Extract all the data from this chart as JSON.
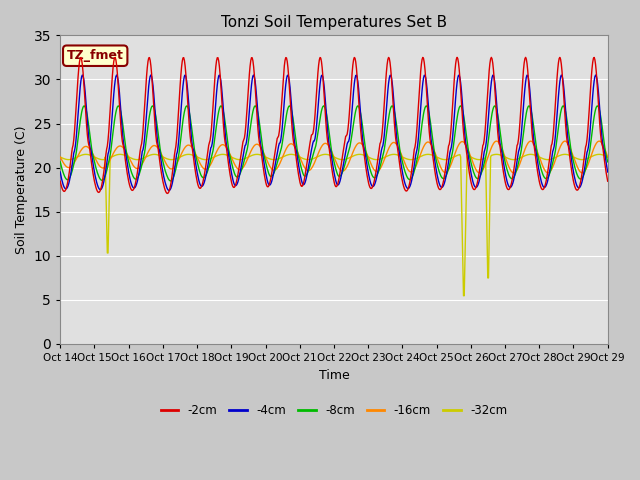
{
  "title": "Tonzi Soil Temperatures Set B",
  "xlabel": "Time",
  "ylabel": "Soil Temperature (C)",
  "ylim": [
    0,
    35
  ],
  "annotation_label": "TZ_fmet",
  "annotation_bg": "#ffffcc",
  "annotation_border": "#880000",
  "tick_labels": [
    "Oct 14",
    "Oct 15",
    "Oct 16",
    "Oct 17",
    "Oct 18",
    "Oct 19",
    "Oct 20",
    "Oct 21",
    "Oct 22",
    "Oct 23",
    "Oct 24",
    "Oct 25",
    "Oct 26",
    "Oct 27",
    "Oct 28",
    "Oct 29",
    "Oct 29"
  ],
  "legend_entries": [
    "-2cm",
    "-4cm",
    "-8cm",
    "-16cm",
    "-32cm"
  ],
  "legend_colors": [
    "#dd0000",
    "#0000cc",
    "#00bb00",
    "#ff8800",
    "#cccc00"
  ],
  "n_days": 16,
  "pts_per_day": 48
}
